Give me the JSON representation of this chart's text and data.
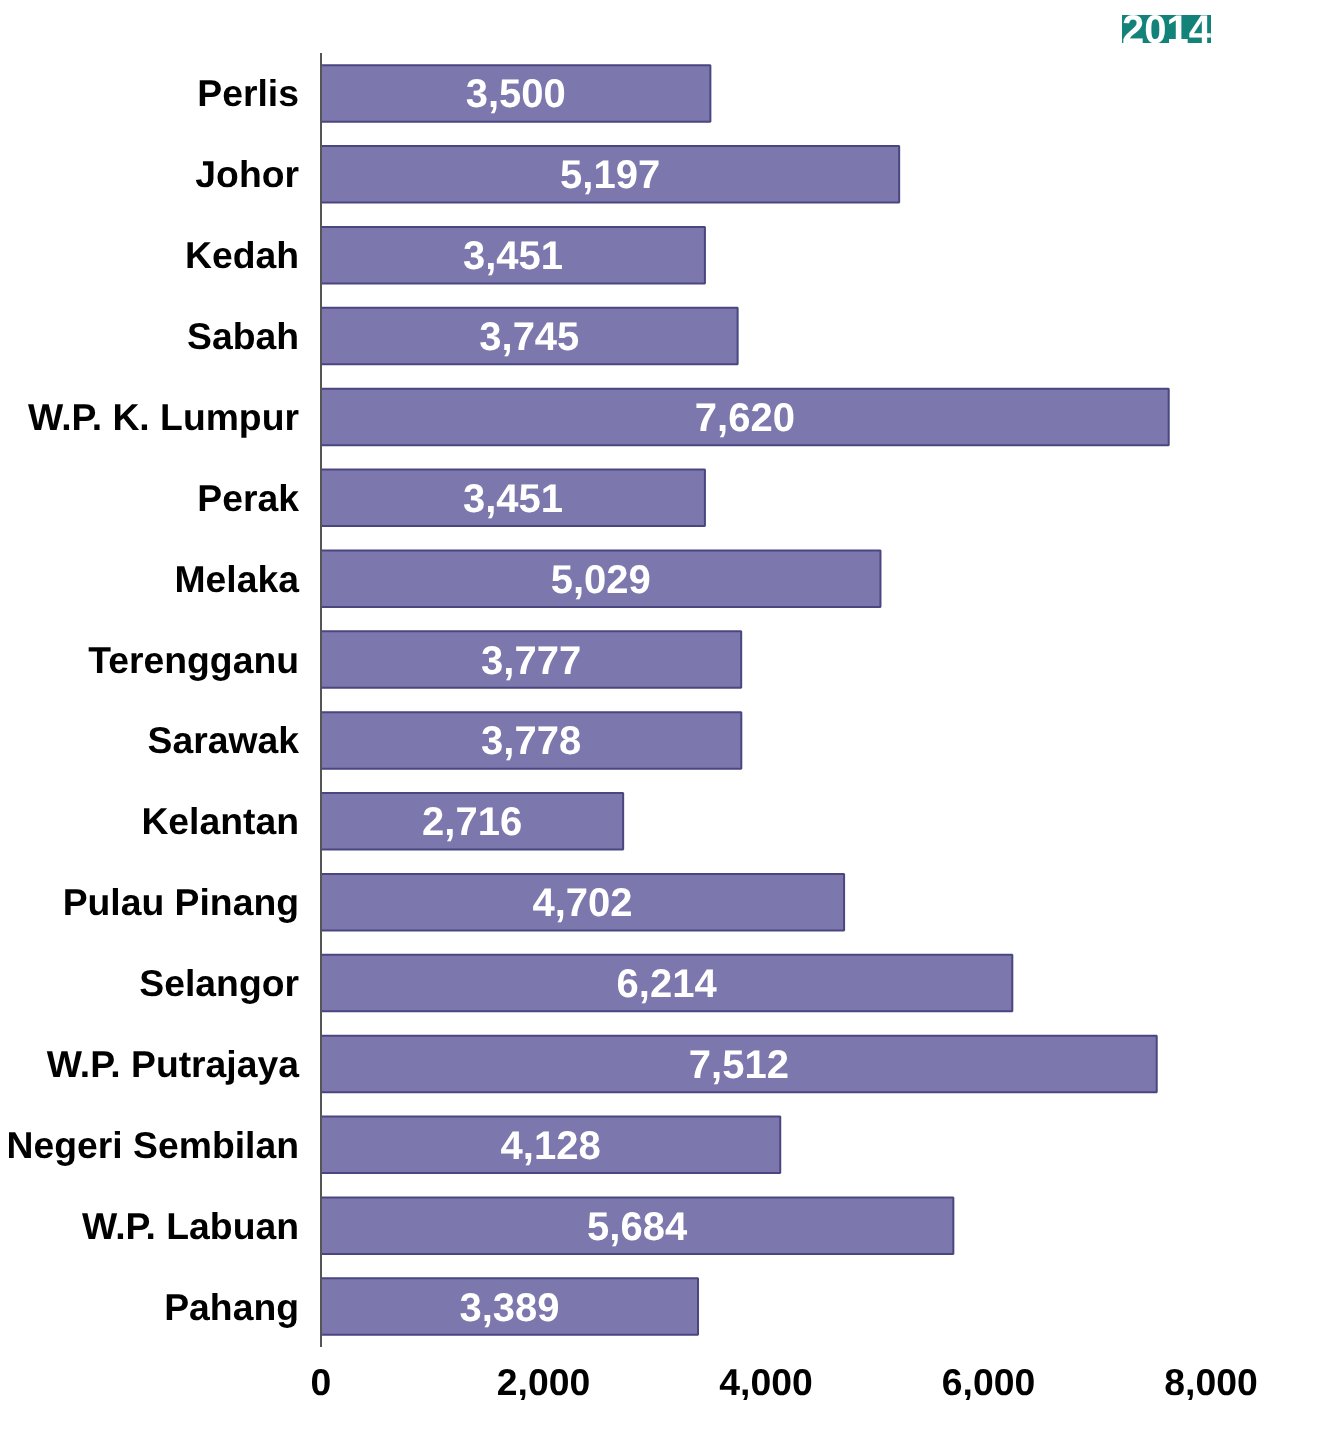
{
  "chart_data": {
    "type": "bar",
    "orientation": "horizontal",
    "categories": [
      "Perlis",
      "Johor",
      "Kedah",
      "Sabah",
      "W.P. K. Lumpur",
      "Perak",
      "Melaka",
      "Terengganu",
      "Sarawak",
      "Kelantan",
      "Pulau Pinang",
      "Selangor",
      "W.P. Putrajaya",
      "Negeri Sembilan",
      "W.P. Labuan",
      "Pahang"
    ],
    "values": [
      3500,
      5197,
      3451,
      3745,
      7620,
      3451,
      5029,
      3777,
      3778,
      2716,
      4702,
      6214,
      7512,
      4128,
      5684,
      3389
    ],
    "value_labels": [
      "3,500",
      "5,197",
      "3,451",
      "3,745",
      "7,620",
      "3,451",
      "5,029",
      "3,777",
      "3,778",
      "2,716",
      "4,702",
      "6,214",
      "7,512",
      "4,128",
      "5,684",
      "3,389"
    ],
    "color": "#7c77ad",
    "xlim": [
      0,
      8000
    ],
    "xticks": [
      {
        "value": 0,
        "label": "0"
      },
      {
        "value": 2000,
        "label": "2,000"
      },
      {
        "value": 4000,
        "label": "4,000"
      },
      {
        "value": 6000,
        "label": "6,000"
      },
      {
        "value": 8000,
        "label": "8,000"
      }
    ],
    "grid": false,
    "annotations": [
      "2014"
    ]
  }
}
